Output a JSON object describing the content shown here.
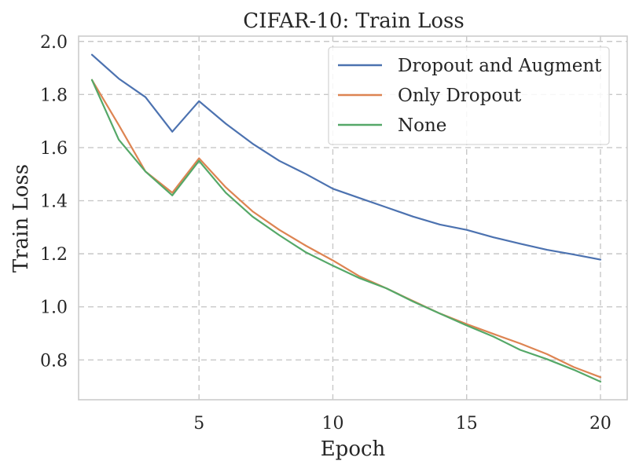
{
  "chart_data": {
    "type": "line",
    "title": "CIFAR-10: Train Loss",
    "xlabel": "Epoch",
    "ylabel": "Train Loss",
    "xlim": [
      0.5,
      21
    ],
    "ylim": [
      0.65,
      2.02
    ],
    "xticks": [
      5,
      10,
      15,
      20
    ],
    "yticks": [
      0.8,
      1.0,
      1.2,
      1.4,
      1.6,
      1.8,
      2.0
    ],
    "xtick_labels": [
      "5",
      "10",
      "15",
      "20"
    ],
    "ytick_labels": [
      "0.8",
      "1.0",
      "1.2",
      "1.4",
      "1.6",
      "1.8",
      "2.0"
    ],
    "grid": true,
    "legend_position": "top-right",
    "x": [
      1,
      2,
      3,
      4,
      5,
      6,
      7,
      8,
      9,
      10,
      11,
      12,
      13,
      14,
      15,
      16,
      17,
      18,
      19,
      20
    ],
    "series": [
      {
        "name": "Dropout and Augment",
        "color": "#4c72b0",
        "values": [
          1.95,
          1.86,
          1.79,
          1.66,
          1.775,
          1.69,
          1.615,
          1.55,
          1.5,
          1.445,
          1.41,
          1.375,
          1.34,
          1.31,
          1.29,
          1.262,
          1.238,
          1.215,
          1.197,
          1.178
        ]
      },
      {
        "name": "Only Dropout",
        "color": "#dd8452",
        "values": [
          1.855,
          1.685,
          1.51,
          1.43,
          1.56,
          1.45,
          1.36,
          1.29,
          1.23,
          1.175,
          1.115,
          1.07,
          1.022,
          0.975,
          0.935,
          0.898,
          0.862,
          0.822,
          0.773,
          0.735
        ]
      },
      {
        "name": "None",
        "color": "#55a868",
        "values": [
          1.855,
          1.63,
          1.51,
          1.42,
          1.55,
          1.43,
          1.34,
          1.27,
          1.205,
          1.155,
          1.108,
          1.07,
          1.02,
          0.975,
          0.93,
          0.888,
          0.838,
          0.803,
          0.763,
          0.718
        ]
      }
    ]
  }
}
